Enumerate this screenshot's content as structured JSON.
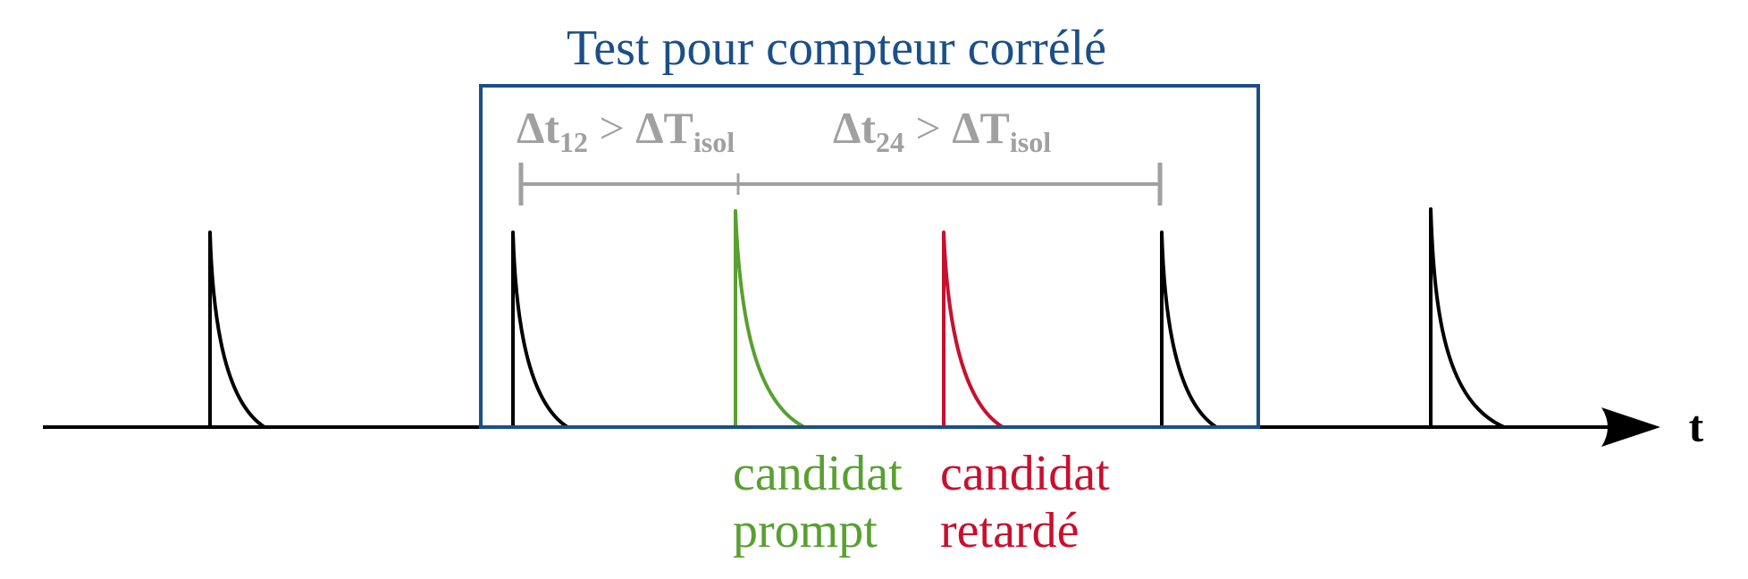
{
  "title": "Test pour compteur corrélé",
  "axis_label": "t",
  "intervals": [
    {
      "delta": "Δt",
      "sub1": "12",
      "op": " > ",
      "big": "ΔT",
      "sub2": "isol"
    },
    {
      "delta": "Δt",
      "sub1": "24",
      "op": " > ",
      "big": "ΔT",
      "sub2": "isol"
    }
  ],
  "candidates": {
    "prompt": {
      "line1": "candidat",
      "line2": "prompt"
    },
    "delayed": {
      "line1": "candidat",
      "line2": "retardé"
    }
  },
  "colors": {
    "window": "#1b4f87",
    "interval": "#a0a0a0",
    "prompt": "#58a030",
    "delayed": "#c8102e",
    "pulse": "#000000"
  }
}
